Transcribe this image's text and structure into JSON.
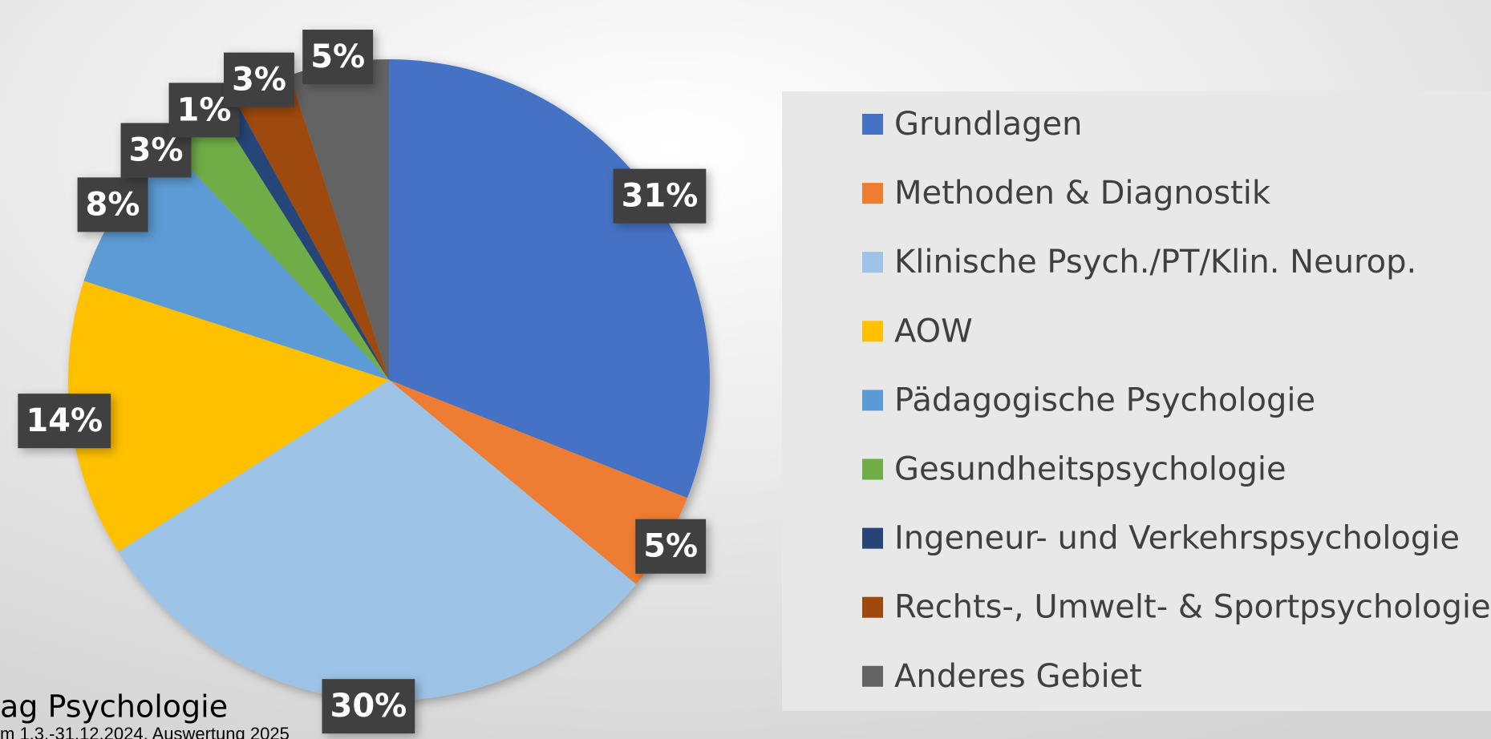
{
  "chart_data": {
    "type": "pie",
    "categories": [
      "Grundlagen",
      "Methoden & Diagnostik",
      "Klinische Psych./PT/Klin. Neurop.",
      "AOW",
      "Pädagogische Psychologie",
      "Gesundheitspsychologie",
      "Ingeneur- und Verkehrspsychologie",
      "Rechts-, Umwelt- & Sportpsychologie",
      "Anderes Gebiet"
    ],
    "values": [
      31,
      5,
      30,
      14,
      8,
      3,
      1,
      3,
      5
    ],
    "value_labels": [
      "31%",
      "5%",
      "30%",
      "14%",
      "8%",
      "3%",
      "1%",
      "3%",
      "5%"
    ],
    "colors": [
      "#4472c4",
      "#ed7d31",
      "#9dc3e6",
      "#ffc000",
      "#5b9bd5",
      "#70ad47",
      "#264478",
      "#9e480e",
      "#636363"
    ],
    "legend": "right"
  },
  "footer": {
    "title": "ag Psychologie",
    "subtitle": "m 1.3.-31.12.2024, Auswertung 2025"
  }
}
